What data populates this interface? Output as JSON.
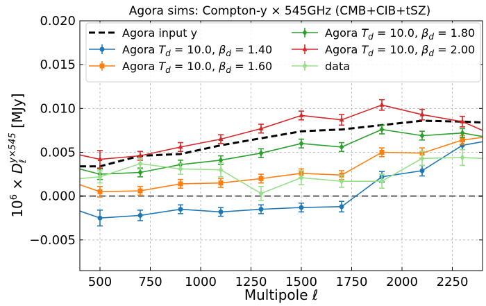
{
  "chart_data": {
    "type": "line",
    "title": "Agora sims: Compton-y × 545GHz (CMB+CIB+tSZ)",
    "xlabel": "Multipole ℓ",
    "ylabel": "10⁶ × Dℓ^(y×545) [MJy]",
    "ylabel_parts": {
      "prefix": "10",
      "prefix_exp": "6",
      "times": "×",
      "symbol": "D",
      "sub": "ℓ",
      "sup": "y×545",
      "unit": "[MJy]"
    },
    "xlim": [
      400,
      2400
    ],
    "ylim": [
      -0.0085,
      0.02
    ],
    "x_ticks": [
      500,
      750,
      1000,
      1250,
      1500,
      1750,
      2000,
      2250
    ],
    "x_tick_labels": [
      "500",
      "750",
      "1000",
      "1250",
      "1500",
      "1750",
      "2000",
      "2250"
    ],
    "y_ticks": [
      -0.005,
      0.0,
      0.005,
      0.01,
      0.015,
      0.02
    ],
    "y_tick_labels": [
      "−0.005",
      "0.000",
      "0.005",
      "0.010",
      "0.015",
      "0.020"
    ],
    "grid": true,
    "zero_line": 0.0,
    "legend_position": "upper-left",
    "series": [
      {
        "name": "Agora input y",
        "label_parts": [
          "Agora input y"
        ],
        "color": "#000000",
        "style": "dashed",
        "marker": "none",
        "x": [
          400,
          500,
          700,
          900,
          1100,
          1300,
          1500,
          1700,
          1900,
          2100,
          2300,
          2400
        ],
        "y": [
          0.0034,
          0.0034,
          0.0046,
          0.0048,
          0.0058,
          0.0066,
          0.0074,
          0.0076,
          0.0081,
          0.0086,
          0.0085,
          0.0084
        ],
        "err": null
      },
      {
        "name": "Agora Td = 10.0, βd = 1.40",
        "label_parts": [
          "Agora ",
          "T",
          "d",
          " = 10.0, ",
          "β",
          "d",
          " = 1.40"
        ],
        "color": "#1f77b4",
        "style": "solid",
        "marker": "circle",
        "x": [
          400,
          500,
          700,
          900,
          1100,
          1300,
          1500,
          1700,
          1900,
          2100,
          2300,
          2400
        ],
        "y": [
          -0.0017,
          -0.0025,
          -0.0022,
          -0.0015,
          -0.0018,
          -0.0015,
          -0.0013,
          -0.0012,
          0.0022,
          0.0029,
          0.0058,
          0.0062
        ],
        "err": [
          null,
          0.0009,
          0.0006,
          0.0005,
          0.0005,
          0.0005,
          0.0005,
          0.0006,
          0.0006,
          0.0006,
          0.0005,
          null
        ]
      },
      {
        "name": "Agora Td = 10.0, βd = 1.60",
        "label_parts": [
          "Agora ",
          "T",
          "d",
          " = 10.0, ",
          "β",
          "d",
          " = 1.60"
        ],
        "color": "#ff7f0e",
        "style": "solid",
        "marker": "square",
        "x": [
          400,
          500,
          700,
          900,
          1100,
          1300,
          1500,
          1700,
          1900,
          2100,
          2300,
          2400
        ],
        "y": [
          0.0013,
          0.0005,
          0.0006,
          0.0014,
          0.0015,
          0.002,
          0.0026,
          0.0024,
          0.005,
          0.0049,
          0.0064,
          0.0067
        ],
        "err": [
          null,
          0.0006,
          0.0005,
          0.0005,
          0.0005,
          0.0005,
          0.0005,
          0.0005,
          0.0005,
          0.0006,
          0.0005,
          null
        ]
      },
      {
        "name": "Agora Td = 10.0, βd = 1.80",
        "label_parts": [
          "Agora ",
          "T",
          "d",
          " = 10.0, ",
          "β",
          "d",
          " = 1.80"
        ],
        "color": "#2ca02c",
        "style": "solid",
        "marker": "diamond",
        "x": [
          400,
          500,
          700,
          900,
          1100,
          1300,
          1500,
          1700,
          1900,
          2100,
          2300,
          2400
        ],
        "y": [
          0.0031,
          0.0025,
          0.0027,
          0.0036,
          0.0041,
          0.0049,
          0.006,
          0.0056,
          0.0076,
          0.0069,
          0.0072,
          0.0068
        ],
        "err": [
          null,
          0.0006,
          0.0005,
          0.0005,
          0.0005,
          0.0005,
          0.0005,
          0.0005,
          0.0005,
          0.0005,
          0.0005,
          null
        ]
      },
      {
        "name": "Agora Td = 10.0, βd = 2.00",
        "label_parts": [
          "Agora ",
          "T",
          "d",
          " = 10.0, ",
          "β",
          "d",
          " = 2.00"
        ],
        "color": "#d62728",
        "style": "solid",
        "marker": "triangle",
        "x": [
          400,
          500,
          700,
          900,
          1100,
          1300,
          1500,
          1700,
          1900,
          2100,
          2300,
          2400
        ],
        "y": [
          0.0047,
          0.0042,
          0.0046,
          0.0056,
          0.0065,
          0.0077,
          0.0092,
          0.0087,
          0.0104,
          0.0093,
          0.0085,
          0.0075
        ],
        "err": [
          null,
          0.001,
          0.0005,
          0.0005,
          0.0005,
          0.0005,
          0.0005,
          0.0006,
          0.0006,
          0.0006,
          0.0006,
          null
        ]
      },
      {
        "name": "data",
        "label_parts": [
          "data"
        ],
        "color": "#98df8a",
        "style": "solid",
        "marker": "diamond",
        "x": [
          400,
          500,
          700,
          900,
          1100,
          1300,
          1500,
          1700,
          1900,
          2100,
          2300,
          2400
        ],
        "y": [
          0.002,
          0.0022,
          0.0037,
          0.0031,
          0.003,
          0.0003,
          0.0021,
          0.0017,
          0.0017,
          0.0043,
          0.0044,
          0.0043
        ],
        "err": [
          null,
          0.0007,
          0.0006,
          0.0006,
          0.0008,
          0.0008,
          0.0008,
          0.0007,
          0.0008,
          0.0008,
          0.0009,
          null
        ]
      }
    ],
    "legend_order": [
      0,
      1,
      2,
      3,
      4,
      5
    ]
  }
}
